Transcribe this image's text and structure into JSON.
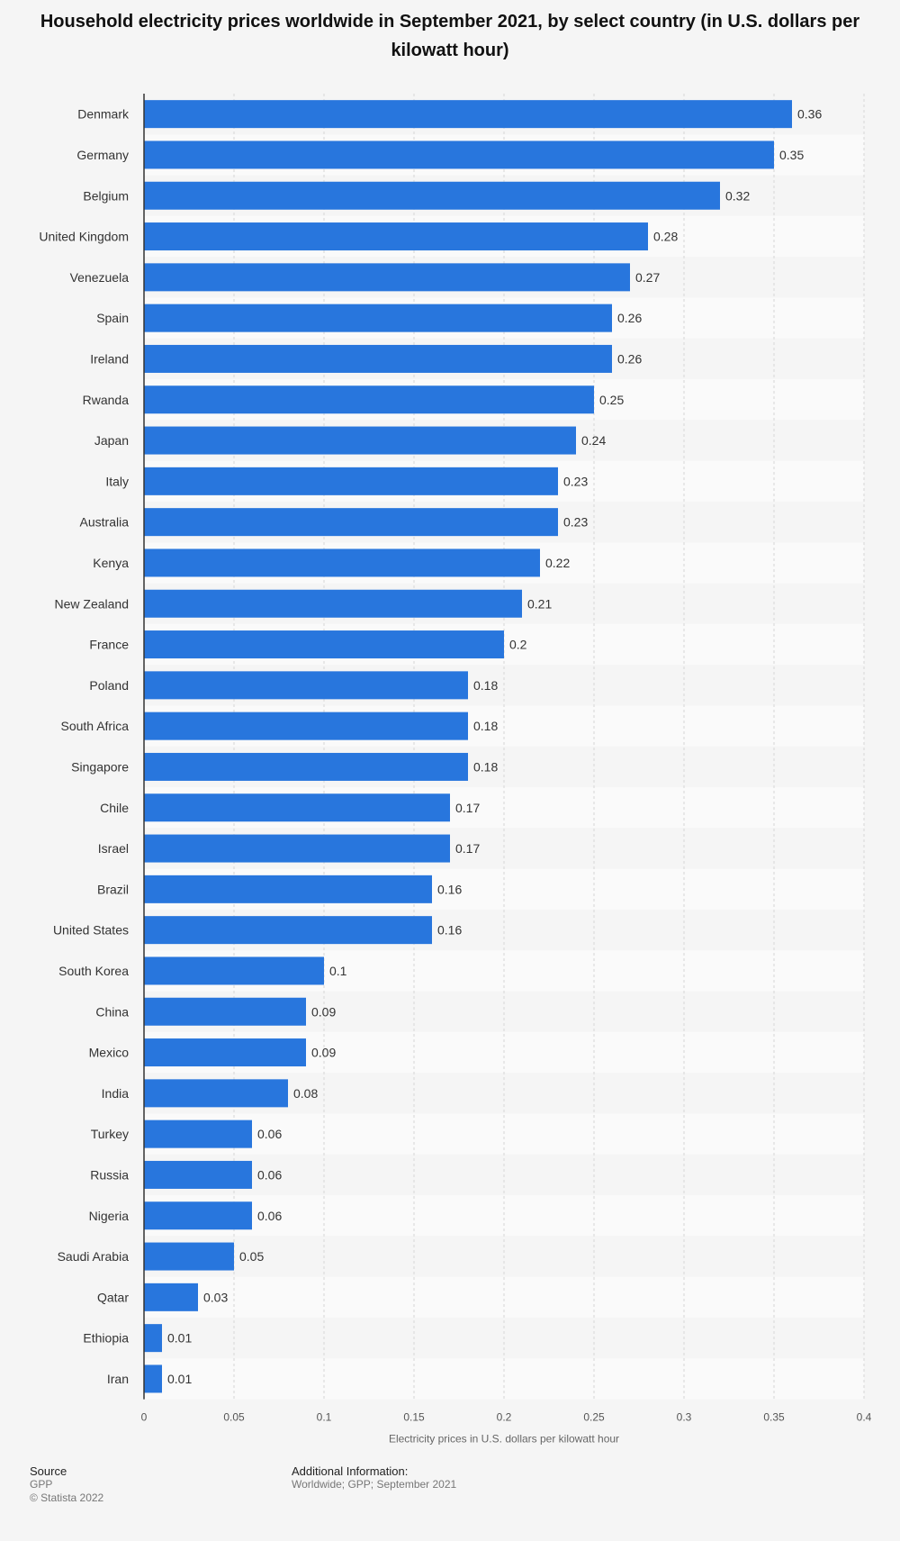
{
  "chart_data": {
    "type": "bar",
    "orientation": "horizontal",
    "title": "Household electricity prices worldwide in September 2021, by select country (in U.S. dollars per kilowatt hour)",
    "xlabel": "Electricity prices in U.S. dollars per kilowatt hour",
    "ylabel": "",
    "xlim": [
      0,
      0.4
    ],
    "ticks": [
      "0",
      "0.05",
      "0.1",
      "0.15",
      "0.2",
      "0.25",
      "0.3",
      "0.35",
      "0.4"
    ],
    "tick_values": [
      0,
      0.05,
      0.1,
      0.15,
      0.2,
      0.25,
      0.3,
      0.35,
      0.4
    ],
    "categories": [
      "Denmark",
      "Germany",
      "Belgium",
      "United Kingdom",
      "Venezuela",
      "Spain",
      "Ireland",
      "Rwanda",
      "Japan",
      "Italy",
      "Australia",
      "Kenya",
      "New Zealand",
      "France",
      "Poland",
      "South Africa",
      "Singapore",
      "Chile",
      "Israel",
      "Brazil",
      "United States",
      "South Korea",
      "China",
      "Mexico",
      "India",
      "Turkey",
      "Russia",
      "Nigeria",
      "Saudi Arabia",
      "Qatar",
      "Ethiopia",
      "Iran"
    ],
    "values": [
      0.36,
      0.35,
      0.32,
      0.28,
      0.27,
      0.26,
      0.26,
      0.25,
      0.24,
      0.23,
      0.23,
      0.22,
      0.21,
      0.2,
      0.18,
      0.18,
      0.18,
      0.17,
      0.17,
      0.16,
      0.16,
      0.1,
      0.09,
      0.09,
      0.08,
      0.06,
      0.06,
      0.06,
      0.05,
      0.03,
      0.01,
      0.01
    ],
    "value_labels": [
      "0.36",
      "0.35",
      "0.32",
      "0.28",
      "0.27",
      "0.26",
      "0.26",
      "0.25",
      "0.24",
      "0.23",
      "0.23",
      "0.22",
      "0.21",
      "0.2",
      "0.18",
      "0.18",
      "0.18",
      "0.17",
      "0.17",
      "0.16",
      "0.16",
      "0.1",
      "0.09",
      "0.09",
      "0.08",
      "0.06",
      "0.06",
      "0.06",
      "0.05",
      "0.03",
      "0.01",
      "0.01"
    ],
    "bar_color": "#2876dd",
    "grid": true
  },
  "footer": {
    "source_heading": "Source",
    "source_name": "GPP",
    "copyright": "© Statista 2022",
    "additional_heading": "Additional Information:",
    "additional_text": "Worldwide; GPP; September 2021"
  }
}
